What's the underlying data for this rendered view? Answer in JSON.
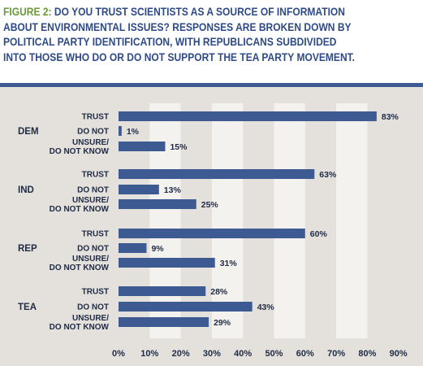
{
  "figure": {
    "label": "FIGURE 2:",
    "title": "DO YOU TRUST SCIENTISTS AS A SOURCE OF INFORMATION ABOUT ENVIRONMENTAL ISSUES? RESPONSES ARE BROKEN DOWN BY POLITICAL PARTY IDENTIFICATION, WITH REPUBLICANS SUBDIVIDED INTO THOSE WHO DO OR DO NOT SUPPORT THE TEA PARTY MOVEMENT."
  },
  "colors": {
    "bar": "#3d5a93",
    "title": "#2e4b87",
    "figure_label": "#6a9a3a",
    "background": "#e4e1dc",
    "stripe": "#f4f2ee"
  },
  "chart_data": {
    "type": "bar",
    "orientation": "horizontal",
    "groups": [
      {
        "name": "DEM",
        "bars": [
          {
            "label": [
              "TRUST"
            ],
            "value": 83
          },
          {
            "label": [
              "DO NOT"
            ],
            "value": 1
          },
          {
            "label": [
              "UNSURE/",
              "DO NOT KNOW"
            ],
            "value": 15
          }
        ]
      },
      {
        "name": "IND",
        "bars": [
          {
            "label": [
              "TRUST"
            ],
            "value": 63
          },
          {
            "label": [
              "DO NOT"
            ],
            "value": 13
          },
          {
            "label": [
              "UNSURE/",
              "DO NOT KNOW"
            ],
            "value": 25
          }
        ]
      },
      {
        "name": "REP",
        "bars": [
          {
            "label": [
              "TRUST"
            ],
            "value": 60
          },
          {
            "label": [
              "DO NOT"
            ],
            "value": 9
          },
          {
            "label": [
              "UNSURE/",
              "DO NOT KNOW"
            ],
            "value": 31
          }
        ]
      },
      {
        "name": "TEA",
        "bars": [
          {
            "label": [
              "TRUST"
            ],
            "value": 28
          },
          {
            "label": [
              "DO NOT"
            ],
            "value": 43
          },
          {
            "label": [
              "UNSURE/",
              "DO NOT KNOW"
            ],
            "value": 29
          }
        ]
      }
    ],
    "value_suffix": "%",
    "xlim": [
      0,
      90
    ],
    "xticks": [
      0,
      10,
      20,
      30,
      40,
      50,
      60,
      70,
      80,
      90
    ],
    "xtick_labels": [
      "0%",
      "10%",
      "20%",
      "30%",
      "40%",
      "50%",
      "60%",
      "70%",
      "80%",
      "90%"
    ],
    "grid": "alternating vertical bands",
    "legend": "none"
  }
}
